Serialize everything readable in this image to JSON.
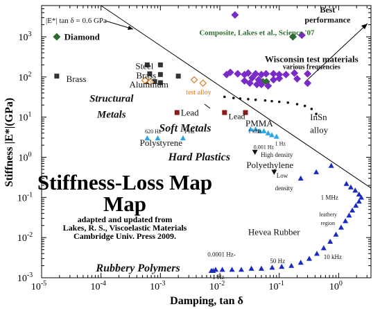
{
  "chart_data": {
    "type": "scatter",
    "title": "Stiffness-Loss Map",
    "subtitle_lines": [
      "adapted and updated from",
      "Lakes, R. S., Viscoelastic Materials",
      "Cambridge Univ. Press 2009."
    ],
    "xlabel": "Damping, tan δ",
    "ylabel": "Stiffness |E*|(GPa)",
    "x_scale": "log",
    "y_scale": "log",
    "xlim": [
      1e-05,
      3.5
    ],
    "ylim": [
      0.001,
      6000
    ],
    "x_ticks": [
      {
        "value": 1e-05,
        "base": "10",
        "exp": "-5"
      },
      {
        "value": 0.0001,
        "base": "10",
        "exp": "-4"
      },
      {
        "value": 0.001,
        "base": "10",
        "exp": "-3"
      },
      {
        "value": 0.01,
        "base": "10",
        "exp": "-2"
      },
      {
        "value": 0.1,
        "base": "10",
        "exp": "-1"
      },
      {
        "value": 1,
        "base": "10",
        "exp": "0"
      }
    ],
    "y_ticks": [
      {
        "value": 0.001,
        "base": "10",
        "exp": "-3"
      },
      {
        "value": 0.01,
        "base": "10",
        "exp": "-2"
      },
      {
        "value": 0.1,
        "base": "10",
        "exp": "-1"
      },
      {
        "value": 1,
        "base": "10",
        "exp": "0"
      },
      {
        "value": 10,
        "base": "10",
        "exp": "1"
      },
      {
        "value": 100,
        "base": "10",
        "exp": "2"
      },
      {
        "value": 1000,
        "base": "10",
        "exp": "3"
      }
    ],
    "grid": false,
    "diagonal_line": {
      "label": "|E*| tan δ = 0.6 GPa",
      "product": 0.6
    },
    "series": [
      {
        "name": "Diamond",
        "marker": "diamond",
        "color": "#2e6b2e",
        "points": [
          [
            1.8e-05,
            1000
          ]
        ]
      },
      {
        "name": "Composite, Lakes et al., Science '07",
        "marker": "diamond",
        "color": "#2e6b2e",
        "points": [
          [
            0.17,
            1000
          ],
          [
            0.053,
            76
          ],
          [
            0.061,
            76
          ]
        ]
      },
      {
        "name": "Structural Metals",
        "marker": "square",
        "color": "#333333",
        "points": [
          [
            1.8e-05,
            105
          ],
          [
            0.0006,
            200
          ],
          [
            0.001,
            200
          ],
          [
            0.00066,
            120
          ],
          [
            0.001,
            115
          ],
          [
            0.00058,
            77
          ],
          [
            0.0008,
            77
          ],
          [
            0.001,
            72
          ],
          [
            0.002,
            105
          ]
        ]
      },
      {
        "name": "Aluminum",
        "marker": "open-diamond",
        "color": "#e07a1f",
        "points": [
          [
            0.00055,
            82
          ],
          [
            0.00068,
            75
          ],
          [
            0.0037,
            85
          ],
          [
            0.0052,
            70
          ]
        ]
      },
      {
        "name": "Soft Metals",
        "marker": "square",
        "color": "#8b1a1a",
        "points": [
          [
            0.0019,
            13
          ],
          [
            0.012,
            13
          ],
          [
            0.027,
            13
          ]
        ]
      },
      {
        "name": "Wisconsin test materials",
        "marker": "diamond",
        "color": "#7a2bc7",
        "points": [
          [
            0.018,
            3500
          ],
          [
            0.24,
            1100
          ],
          [
            0.013,
            115
          ],
          [
            0.015,
            130
          ],
          [
            0.02,
            120
          ],
          [
            0.026,
            115
          ],
          [
            0.03,
            125
          ],
          [
            0.04,
            120
          ],
          [
            0.05,
            115
          ],
          [
            0.06,
            120
          ],
          [
            0.08,
            120
          ],
          [
            0.1,
            115
          ],
          [
            0.13,
            115
          ],
          [
            0.18,
            125
          ],
          [
            0.3,
            120
          ],
          [
            0.035,
            95
          ],
          [
            0.045,
            85
          ],
          [
            0.026,
            80
          ],
          [
            0.032,
            70
          ],
          [
            0.042,
            65
          ],
          [
            0.05,
            65
          ],
          [
            0.065,
            60
          ],
          [
            0.08,
            85
          ],
          [
            0.1,
            92
          ],
          [
            0.2,
            90
          ],
          [
            0.3,
            70
          ]
        ]
      },
      {
        "name": "InSn alloy",
        "marker": "dot",
        "color": "#111111",
        "points": [
          [
            0.012,
            32
          ],
          [
            0.017,
            30
          ],
          [
            0.022,
            29
          ],
          [
            0.03,
            28
          ],
          [
            0.04,
            27
          ],
          [
            0.058,
            26
          ],
          [
            0.075,
            25
          ],
          [
            0.1,
            24
          ],
          [
            0.14,
            23
          ],
          [
            0.2,
            21
          ],
          [
            0.27,
            19
          ],
          [
            0.35,
            16
          ],
          [
            0.42,
            12
          ]
        ]
      },
      {
        "name": "Hard Plastics",
        "marker": "triangle",
        "color": "#2aa6e8",
        "points": [
          [
            0.0006,
            3
          ],
          [
            0.0009,
            3
          ],
          [
            0.0024,
            3
          ],
          [
            0.033,
            5
          ],
          [
            0.04,
            5
          ],
          [
            0.047,
            4.5
          ],
          [
            0.055,
            4.5
          ],
          [
            0.065,
            4
          ],
          [
            0.075,
            3.6
          ],
          [
            0.09,
            3.3
          ]
        ]
      },
      {
        "name": "Polyethylene",
        "marker": "triangle-down",
        "color": "#111111",
        "points": [
          [
            0.039,
            1.35
          ],
          [
            0.082,
            0.43
          ]
        ]
      },
      {
        "name": "Rubbery Polymers",
        "marker": "triangle",
        "color": "#1a2bc4",
        "points": [
          [
            0.0072,
            0.0015
          ],
          [
            0.0077,
            0.0015
          ],
          [
            0.0085,
            0.0016
          ],
          [
            0.011,
            0.0016
          ],
          [
            0.016,
            0.0016
          ],
          [
            0.023,
            0.0016
          ],
          [
            0.034,
            0.0017
          ],
          [
            0.05,
            0.0017
          ],
          [
            0.076,
            0.0018
          ],
          [
            0.11,
            0.0019
          ],
          [
            0.16,
            0.002
          ],
          [
            0.23,
            0.0024
          ],
          [
            0.32,
            0.003
          ],
          [
            0.43,
            0.004
          ],
          [
            0.56,
            0.0055
          ],
          [
            0.72,
            0.008
          ],
          [
            0.9,
            0.012
          ],
          [
            1.1,
            0.018
          ],
          [
            1.3,
            0.026
          ],
          [
            1.5,
            0.036
          ],
          [
            1.7,
            0.048
          ],
          [
            1.95,
            0.063
          ],
          [
            2.2,
            0.08
          ],
          [
            2.4,
            0.1
          ],
          [
            2.2,
            0.12
          ],
          [
            1.9,
            0.15
          ],
          [
            1.6,
            0.18
          ],
          [
            1.35,
            0.22
          ],
          [
            0.23,
            0.3
          ],
          [
            0.42,
            0.43
          ],
          [
            0.75,
            0.62
          ]
        ]
      }
    ],
    "annotations": [
      {
        "text": "Diamond",
        "x": 2.4e-05,
        "y": 1000,
        "weight": "bold",
        "size": 13,
        "color": "#111111",
        "anchor": "start"
      },
      {
        "text": "Composite, Lakes et al., Science '07",
        "x": 0.0045,
        "y": 1300,
        "weight": "bold",
        "size": 11,
        "color": "#2e6b2e",
        "anchor": "start"
      },
      {
        "text": "Best",
        "x": 0.65,
        "y": 4800,
        "weight": "bold",
        "size": 12,
        "color": "#111111",
        "anchor": "middle"
      },
      {
        "text": "performance",
        "x": 0.65,
        "y": 2700,
        "weight": "bold",
        "size": 12,
        "color": "#111111",
        "anchor": "middle"
      },
      {
        "text": "Wisconsin test materials",
        "x": 0.35,
        "y": 280,
        "weight": "bold",
        "size": 13,
        "color": "#111111",
        "anchor": "middle"
      },
      {
        "text": "various frequencies",
        "x": 0.35,
        "y": 180,
        "weight": "bold",
        "size": 10,
        "color": "#111111",
        "anchor": "middle"
      },
      {
        "text": "Steel",
        "x": 0.00038,
        "y": 190,
        "weight": "normal",
        "size": 13,
        "color": "#111111",
        "anchor": "start"
      },
      {
        "text": "Brass",
        "x": 0.00039,
        "y": 110,
        "weight": "normal",
        "size": 13,
        "color": "#111111",
        "anchor": "start"
      },
      {
        "text": "Brass",
        "x": 2.6e-05,
        "y": 90,
        "weight": "normal",
        "size": 13,
        "color": "#111111",
        "anchor": "start"
      },
      {
        "text": "Aluminum",
        "x": 0.0003,
        "y": 65,
        "weight": "normal",
        "size": 13,
        "color": "#111111",
        "anchor": "start"
      },
      {
        "text": "test alloy",
        "x": 0.0027,
        "y": 42,
        "weight": "normal",
        "size": 10,
        "color": "#e07a1f",
        "anchor": "start"
      },
      {
        "text": "Structural",
        "x": 0.00015,
        "y": 30,
        "weight": "bold",
        "style": "italic",
        "size": 15,
        "color": "#111111",
        "anchor": "middle"
      },
      {
        "text": "Metals",
        "x": 0.00015,
        "y": 12,
        "weight": "bold",
        "style": "italic",
        "size": 15,
        "color": "#111111",
        "anchor": "middle"
      },
      {
        "text": "Lead",
        "x": 0.0022,
        "y": 13,
        "weight": "normal",
        "size": 13,
        "color": "#111111",
        "anchor": "start"
      },
      {
        "text": "Lead",
        "x": 0.014,
        "y": 10.5,
        "weight": "normal",
        "size": 12,
        "color": "#111111",
        "anchor": "start"
      },
      {
        "text": "Soft Metals",
        "x": 0.0026,
        "y": 5.5,
        "weight": "bold",
        "style": "italic",
        "size": 16,
        "color": "#111111",
        "anchor": "middle"
      },
      {
        "text": "InSn",
        "x": 0.33,
        "y": 10,
        "weight": "normal",
        "size": 13,
        "color": "#111111",
        "anchor": "start"
      },
      {
        "text": "alloy",
        "x": 0.33,
        "y": 4.8,
        "weight": "normal",
        "size": 13,
        "color": "#111111",
        "anchor": "start"
      },
      {
        "text": "620 Hz",
        "x": 0.00055,
        "y": 4.4,
        "weight": "normal",
        "size": 8,
        "color": "#111111",
        "anchor": "start"
      },
      {
        "text": "1 Hz",
        "x": 0.0025,
        "y": 4.4,
        "weight": "normal",
        "size": 8,
        "color": "#111111",
        "anchor": "start"
      },
      {
        "text": "PMMA",
        "x": 0.027,
        "y": 7,
        "weight": "normal",
        "size": 13,
        "color": "#111111",
        "anchor": "start"
      },
      {
        "text": "1 kHz",
        "x": 0.03,
        "y": 4.5,
        "weight": "normal",
        "size": 8,
        "color": "#111111",
        "anchor": "start"
      },
      {
        "text": "1 Hz",
        "x": 0.085,
        "y": 2.2,
        "weight": "normal",
        "size": 8,
        "color": "#111111",
        "anchor": "start"
      },
      {
        "text": "Polystyrene",
        "x": 0.00045,
        "y": 2.3,
        "weight": "normal",
        "size": 13,
        "color": "#111111",
        "anchor": "start"
      },
      {
        "text": "Hard Plastics",
        "x": 0.0045,
        "y": 1.05,
        "weight": "bold",
        "style": "italic",
        "size": 16,
        "color": "#111111",
        "anchor": "middle"
      },
      {
        "text": "0.001 Hz",
        "x": 0.037,
        "y": 1.8,
        "weight": "normal",
        "size": 8,
        "color": "#111111",
        "anchor": "start"
      },
      {
        "text": "High density",
        "x": 0.049,
        "y": 1.15,
        "weight": "normal",
        "size": 9,
        "color": "#111111",
        "anchor": "start"
      },
      {
        "text": "Polyethylene",
        "x": 0.028,
        "y": 0.65,
        "weight": "normal",
        "size": 13,
        "color": "#111111",
        "anchor": "start"
      },
      {
        "text": "Low",
        "x": 0.09,
        "y": 0.35,
        "weight": "normal",
        "size": 9,
        "color": "#111111",
        "anchor": "start"
      },
      {
        "text": "density",
        "x": 0.085,
        "y": 0.17,
        "weight": "normal",
        "size": 9,
        "color": "#111111",
        "anchor": "start"
      },
      {
        "text": "1 MHz",
        "x": 0.5,
        "y": 0.1,
        "weight": "normal",
        "size": 9,
        "color": "#111111",
        "anchor": "start"
      },
      {
        "text": "leathery",
        "x": 0.47,
        "y": 0.038,
        "weight": "normal",
        "size": 8,
        "color": "#111111",
        "anchor": "start"
      },
      {
        "text": "region",
        "x": 0.5,
        "y": 0.023,
        "weight": "normal",
        "size": 8,
        "color": "#111111",
        "anchor": "start"
      },
      {
        "text": "Hevea Rubber",
        "x": 0.03,
        "y": 0.014,
        "weight": "normal",
        "size": 13,
        "color": "#111111",
        "anchor": "start"
      },
      {
        "text": "0.0001 Hz-",
        "x": 0.0062,
        "y": 0.0038,
        "weight": "normal",
        "size": 9,
        "color": "#111111",
        "anchor": "start"
      },
      {
        "text": "1 Hz",
        "x": 0.0075,
        "y": 0.00105,
        "weight": "normal",
        "size": 9,
        "color": "#111111",
        "anchor": "start"
      },
      {
        "text": "50 Hz",
        "x": 0.07,
        "y": 0.0026,
        "weight": "normal",
        "size": 9,
        "color": "#111111",
        "anchor": "start"
      },
      {
        "text": "10 kHz",
        "x": 0.56,
        "y": 0.0033,
        "weight": "normal",
        "size": 9,
        "color": "#111111",
        "anchor": "start"
      },
      {
        "text": "Rubbery Polymers",
        "x": 0.00042,
        "y": 0.0018,
        "weight": "bold",
        "style": "italic",
        "size": 16,
        "color": "#111111",
        "anchor": "middle"
      }
    ]
  }
}
